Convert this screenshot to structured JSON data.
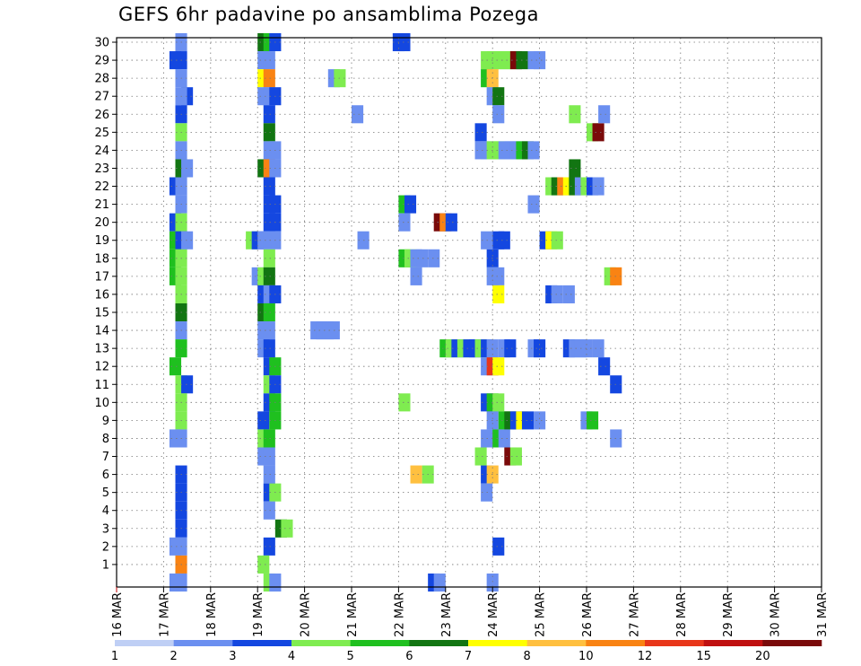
{
  "chart_data": {
    "type": "heatmap",
    "title": "GEFS 6hr padavine po ansamblima Pozega",
    "x_ticks": [
      "16 MAR",
      "17 MAR",
      "18 MAR",
      "19 MAR",
      "20 MAR",
      "21 MAR",
      "22 MAR",
      "23 MAR",
      "24 MAR",
      "25 MAR",
      "26 MAR",
      "27 MAR",
      "28 MAR",
      "29 MAR",
      "30 MAR",
      "31 MAR"
    ],
    "x_range_days": [
      16,
      31
    ],
    "y_ticks": [
      1,
      2,
      3,
      4,
      5,
      6,
      7,
      8,
      9,
      10,
      11,
      12,
      13,
      14,
      15,
      16,
      17,
      18,
      19,
      20,
      21,
      22,
      23,
      24,
      25,
      26,
      27,
      28,
      29,
      30
    ],
    "y_range": [
      0,
      30
    ],
    "grid": true,
    "legend_position": "bottom",
    "legend": {
      "bins": [
        "#bfcff5",
        "#6b8ff0",
        "#1447e0",
        "#7fec50",
        "#1fc01f",
        "#127512",
        "#ffff00",
        "#ffc040",
        "#f98313",
        "#e8361a",
        "#c01010",
        "#7a0a0a"
      ],
      "labels": [
        "1",
        "2",
        "3",
        "4",
        "5",
        "6",
        "7",
        "8",
        "10",
        "12",
        "15",
        "20"
      ]
    },
    "cells": [
      [
        17.375,
        30,
        1
      ],
      [
        17.375,
        29,
        2
      ],
      [
        17.25,
        29,
        2
      ],
      [
        17.375,
        28,
        1
      ],
      [
        17.5,
        27,
        2
      ],
      [
        17.375,
        27,
        1
      ],
      [
        17.375,
        26,
        2
      ],
      [
        17.375,
        25,
        3
      ],
      [
        17.375,
        24,
        1
      ],
      [
        17.375,
        23,
        5
      ],
      [
        17.5,
        23,
        1
      ],
      [
        17.25,
        22,
        2
      ],
      [
        17.375,
        22,
        1
      ],
      [
        17.375,
        21,
        1
      ],
      [
        17.25,
        20,
        2
      ],
      [
        17.375,
        20,
        3
      ],
      [
        17.25,
        19,
        4
      ],
      [
        17.375,
        19,
        2
      ],
      [
        17.5,
        19,
        1
      ],
      [
        17.25,
        18,
        4
      ],
      [
        17.375,
        18,
        3
      ],
      [
        17.25,
        17,
        4
      ],
      [
        17.375,
        17,
        3
      ],
      [
        17.375,
        16,
        3
      ],
      [
        17.375,
        15,
        5
      ],
      [
        17.375,
        14,
        1
      ],
      [
        17.375,
        13,
        4
      ],
      [
        17.25,
        12,
        4
      ],
      [
        17.375,
        11,
        3
      ],
      [
        17.5,
        11,
        2
      ],
      [
        17.375,
        10,
        3
      ],
      [
        17.375,
        9,
        3
      ],
      [
        17.25,
        8,
        1
      ],
      [
        17.375,
        8,
        1
      ],
      [
        17.375,
        6,
        2
      ],
      [
        17.375,
        5,
        2
      ],
      [
        17.375,
        4,
        2
      ],
      [
        17.375,
        3,
        2
      ],
      [
        17.25,
        2,
        1
      ],
      [
        17.375,
        2,
        1
      ],
      [
        17.375,
        1,
        8
      ],
      [
        17.25,
        0,
        1
      ],
      [
        17.375,
        0,
        1
      ],
      [
        19.125,
        30,
        5
      ],
      [
        19.25,
        30,
        4
      ],
      [
        19.375,
        30,
        2
      ],
      [
        19.125,
        29,
        1
      ],
      [
        19.25,
        29,
        1
      ],
      [
        19.125,
        28,
        6
      ],
      [
        19.25,
        28,
        8
      ],
      [
        19.125,
        27,
        1
      ],
      [
        19.25,
        27,
        1
      ],
      [
        19.375,
        27,
        2
      ],
      [
        19.25,
        26,
        2
      ],
      [
        19.25,
        25,
        5
      ],
      [
        19.25,
        24,
        1
      ],
      [
        19.375,
        24,
        1
      ],
      [
        19.125,
        23,
        5
      ],
      [
        19.25,
        23,
        8
      ],
      [
        19.375,
        23,
        1
      ],
      [
        19.25,
        22,
        2
      ],
      [
        19.25,
        21,
        2
      ],
      [
        19.375,
        21,
        2
      ],
      [
        19.25,
        20,
        2
      ],
      [
        19.375,
        20,
        2
      ],
      [
        18.875,
        19,
        3
      ],
      [
        19.0,
        19,
        2
      ],
      [
        19.125,
        19,
        1
      ],
      [
        19.25,
        19,
        1
      ],
      [
        19.375,
        19,
        1
      ],
      [
        19.25,
        18,
        3
      ],
      [
        19.0,
        17,
        1
      ],
      [
        19.125,
        17,
        3
      ],
      [
        19.25,
        17,
        5
      ],
      [
        19.125,
        16,
        2
      ],
      [
        19.25,
        16,
        1
      ],
      [
        19.375,
        16,
        2
      ],
      [
        19.125,
        15,
        5
      ],
      [
        19.25,
        15,
        4
      ],
      [
        19.125,
        14,
        1
      ],
      [
        19.25,
        14,
        1
      ],
      [
        19.125,
        13,
        1
      ],
      [
        19.25,
        13,
        2
      ],
      [
        19.25,
        12,
        2
      ],
      [
        19.375,
        12,
        4
      ],
      [
        19.25,
        11,
        3
      ],
      [
        19.375,
        11,
        2
      ],
      [
        19.25,
        10,
        2
      ],
      [
        19.375,
        10,
        4
      ],
      [
        19.125,
        9,
        2
      ],
      [
        19.375,
        9,
        4
      ],
      [
        19.125,
        8,
        3
      ],
      [
        19.25,
        8,
        4
      ],
      [
        19.125,
        7,
        1
      ],
      [
        19.25,
        7,
        1
      ],
      [
        19.25,
        6,
        1
      ],
      [
        19.25,
        5,
        2
      ],
      [
        19.375,
        5,
        3
      ],
      [
        19.25,
        4,
        1
      ],
      [
        19.5,
        3,
        5
      ],
      [
        19.625,
        3,
        3
      ],
      [
        19.25,
        2,
        2
      ],
      [
        19.125,
        1,
        3
      ],
      [
        19.25,
        0,
        3
      ],
      [
        19.375,
        0,
        1
      ],
      [
        20.625,
        28,
        1
      ],
      [
        20.75,
        28,
        3
      ],
      [
        21.125,
        26,
        1
      ],
      [
        20.25,
        14,
        1
      ],
      [
        20.375,
        14,
        1
      ],
      [
        20.5,
        14,
        1
      ],
      [
        20.625,
        14,
        1
      ],
      [
        21.25,
        19,
        1
      ],
      [
        22.0,
        30,
        2
      ],
      [
        22.125,
        30,
        2
      ],
      [
        22.125,
        21,
        4
      ],
      [
        22.25,
        21,
        2
      ],
      [
        22.125,
        20,
        1
      ],
      [
        22.875,
        20,
        11
      ],
      [
        23.0,
        20,
        8
      ],
      [
        23.125,
        20,
        2
      ],
      [
        22.125,
        18,
        4
      ],
      [
        22.25,
        18,
        3
      ],
      [
        22.375,
        18,
        1
      ],
      [
        22.5,
        18,
        1
      ],
      [
        22.75,
        18,
        1
      ],
      [
        22.375,
        17,
        1
      ],
      [
        23.0,
        13,
        4
      ],
      [
        23.125,
        13,
        3
      ],
      [
        23.25,
        13,
        2
      ],
      [
        22.125,
        10,
        3
      ],
      [
        22.375,
        6,
        7
      ],
      [
        22.625,
        6,
        3
      ],
      [
        22.75,
        0,
        2
      ],
      [
        22.875,
        0,
        1
      ],
      [
        23.875,
        29,
        3
      ],
      [
        24.0,
        29,
        3
      ],
      [
        24.125,
        29,
        3
      ],
      [
        24.25,
        29,
        3
      ],
      [
        24.375,
        29,
        3
      ],
      [
        24.5,
        29,
        11
      ],
      [
        24.625,
        29,
        5
      ],
      [
        24.875,
        29,
        1
      ],
      [
        25.0,
        29,
        1
      ],
      [
        23.875,
        28,
        4
      ],
      [
        24.0,
        28,
        7
      ],
      [
        24.0,
        27,
        1
      ],
      [
        24.125,
        27,
        5
      ],
      [
        24.125,
        26,
        1
      ],
      [
        23.75,
        25,
        2
      ],
      [
        23.75,
        24,
        1
      ],
      [
        23.875,
        24,
        1
      ],
      [
        24.0,
        24,
        3
      ],
      [
        24.125,
        24,
        3
      ],
      [
        24.25,
        24,
        1
      ],
      [
        24.375,
        24,
        1
      ],
      [
        24.5,
        24,
        1
      ],
      [
        24.625,
        24,
        4
      ],
      [
        24.75,
        24,
        5
      ],
      [
        24.875,
        24,
        1
      ],
      [
        24.125,
        19,
        2
      ],
      [
        24.25,
        19,
        2
      ],
      [
        23.875,
        19,
        1
      ],
      [
        24.0,
        18,
        2
      ],
      [
        24.0,
        17,
        1
      ],
      [
        24.125,
        17,
        1
      ],
      [
        24.125,
        16,
        6
      ],
      [
        23.375,
        13,
        3
      ],
      [
        23.5,
        13,
        2
      ],
      [
        23.625,
        13,
        2
      ],
      [
        23.75,
        13,
        3
      ],
      [
        23.875,
        13,
        2
      ],
      [
        24.0,
        13,
        1
      ],
      [
        24.25,
        13,
        1
      ],
      [
        24.375,
        13,
        2
      ],
      [
        23.875,
        12,
        1
      ],
      [
        24.0,
        12,
        9
      ],
      [
        24.125,
        12,
        6
      ],
      [
        23.875,
        10,
        2
      ],
      [
        24.0,
        10,
        4
      ],
      [
        24.125,
        10,
        3
      ],
      [
        24.0,
        9,
        1
      ],
      [
        24.25,
        9,
        4
      ],
      [
        24.375,
        9,
        5
      ],
      [
        24.5,
        9,
        2
      ],
      [
        24.625,
        9,
        6
      ],
      [
        24.75,
        9,
        2
      ],
      [
        23.875,
        8,
        1
      ],
      [
        24.0,
        8,
        1
      ],
      [
        24.125,
        8,
        4
      ],
      [
        24.25,
        8,
        1
      ],
      [
        23.75,
        7,
        3
      ],
      [
        24.375,
        7,
        11
      ],
      [
        24.5,
        7,
        3
      ],
      [
        23.875,
        6,
        2
      ],
      [
        24.0,
        6,
        7
      ],
      [
        23.875,
        5,
        1
      ],
      [
        24.125,
        2,
        2
      ],
      [
        24.0,
        0,
        1
      ],
      [
        25.25,
        22,
        3
      ],
      [
        25.375,
        22,
        5
      ],
      [
        25.5,
        22,
        8
      ],
      [
        25.625,
        22,
        6
      ],
      [
        25.75,
        22,
        5
      ],
      [
        25.875,
        22,
        1
      ],
      [
        26.0,
        22,
        3
      ],
      [
        26.125,
        22,
        2
      ],
      [
        26.25,
        22,
        1
      ],
      [
        24.875,
        21,
        1
      ],
      [
        25.125,
        19,
        2
      ],
      [
        25.25,
        19,
        6
      ],
      [
        25.375,
        19,
        3
      ],
      [
        25.25,
        16,
        2
      ],
      [
        25.375,
        16,
        1
      ],
      [
        25.625,
        16,
        1
      ],
      [
        24.875,
        13,
        1
      ],
      [
        25.0,
        13,
        2
      ],
      [
        25.625,
        13,
        2
      ],
      [
        25.75,
        13,
        1
      ],
      [
        25.875,
        13,
        1
      ],
      [
        26.0,
        13,
        1
      ],
      [
        26.25,
        13,
        1
      ],
      [
        25.0,
        9,
        1
      ],
      [
        26.0,
        9,
        1
      ],
      [
        26.125,
        9,
        4
      ],
      [
        25.75,
        26,
        3
      ],
      [
        26.125,
        25,
        3
      ],
      [
        26.25,
        25,
        11
      ],
      [
        26.375,
        26,
        1
      ],
      [
        25.75,
        23,
        5
      ],
      [
        26.375,
        12,
        2
      ],
      [
        26.5,
        17,
        3
      ],
      [
        26.625,
        17,
        8
      ],
      [
        26.625,
        11,
        2
      ],
      [
        26.625,
        8,
        1
      ]
    ]
  }
}
